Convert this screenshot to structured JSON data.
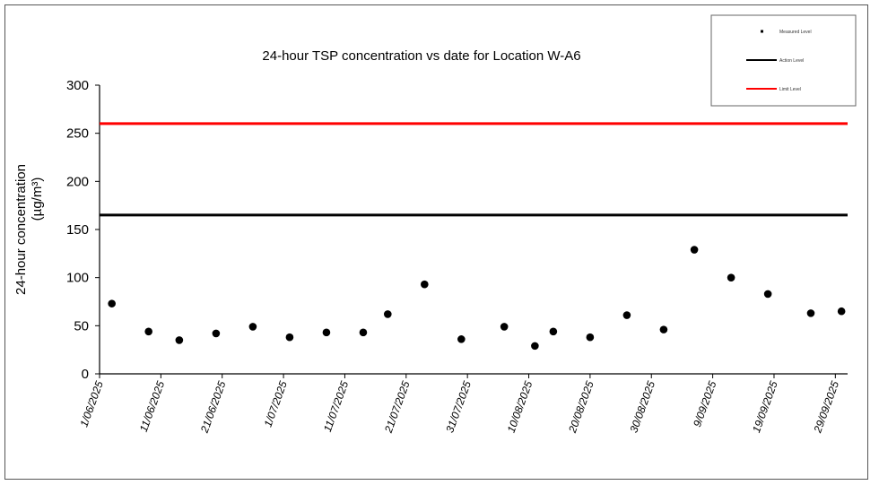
{
  "chart_data": {
    "type": "scatter",
    "title": "24-hour TSP concentration vs date for Location W-A6",
    "ylabel_line1": "24-hour concentration",
    "ylabel_line2": "(µg/m³)",
    "xlabel": "",
    "ylim": [
      0,
      300
    ],
    "yticks": [
      0,
      50,
      100,
      150,
      200,
      250,
      300
    ],
    "xlim": [
      "1/06/2025",
      "1/10/2025"
    ],
    "xticks": [
      "1/06/2025",
      "11/06/2025",
      "21/06/2025",
      "1/07/2025",
      "11/07/2025",
      "21/07/2025",
      "31/07/2025",
      "10/08/2025",
      "20/08/2025",
      "30/08/2025",
      "9/09/2025",
      "19/09/2025",
      "29/09/2025"
    ],
    "grid": false,
    "legend_position": "top-right",
    "legend": [
      {
        "name": "Measured Level",
        "kind": "marker",
        "color": "#000000"
      },
      {
        "name": "Action Level",
        "kind": "line",
        "color": "#000000"
      },
      {
        "name": "Limit Level",
        "kind": "line",
        "color": "#ff0000"
      }
    ],
    "series": [
      {
        "name": "Measured Level",
        "points": [
          {
            "x": "3/06/2025",
            "y": 73
          },
          {
            "x": "9/06/2025",
            "y": 44
          },
          {
            "x": "14/06/2025",
            "y": 35
          },
          {
            "x": "20/06/2025",
            "y": 42
          },
          {
            "x": "26/06/2025",
            "y": 49
          },
          {
            "x": "2/07/2025",
            "y": 38
          },
          {
            "x": "8/07/2025",
            "y": 43
          },
          {
            "x": "14/07/2025",
            "y": 43
          },
          {
            "x": "18/07/2025",
            "y": 62
          },
          {
            "x": "24/07/2025",
            "y": 93
          },
          {
            "x": "30/07/2025",
            "y": 36
          },
          {
            "x": "6/08/2025",
            "y": 49
          },
          {
            "x": "11/08/2025",
            "y": 29
          },
          {
            "x": "14/08/2025",
            "y": 44
          },
          {
            "x": "20/08/2025",
            "y": 38
          },
          {
            "x": "26/08/2025",
            "y": 61
          },
          {
            "x": "1/09/2025",
            "y": 46
          },
          {
            "x": "6/09/2025",
            "y": 129
          },
          {
            "x": "12/09/2025",
            "y": 100
          },
          {
            "x": "18/09/2025",
            "y": 83
          },
          {
            "x": "25/09/2025",
            "y": 63
          },
          {
            "x": "30/09/2025",
            "y": 65
          }
        ]
      },
      {
        "name": "Action Level",
        "y": 165,
        "color": "#000000"
      },
      {
        "name": "Limit Level",
        "y": 260,
        "color": "#ff0000"
      }
    ]
  }
}
